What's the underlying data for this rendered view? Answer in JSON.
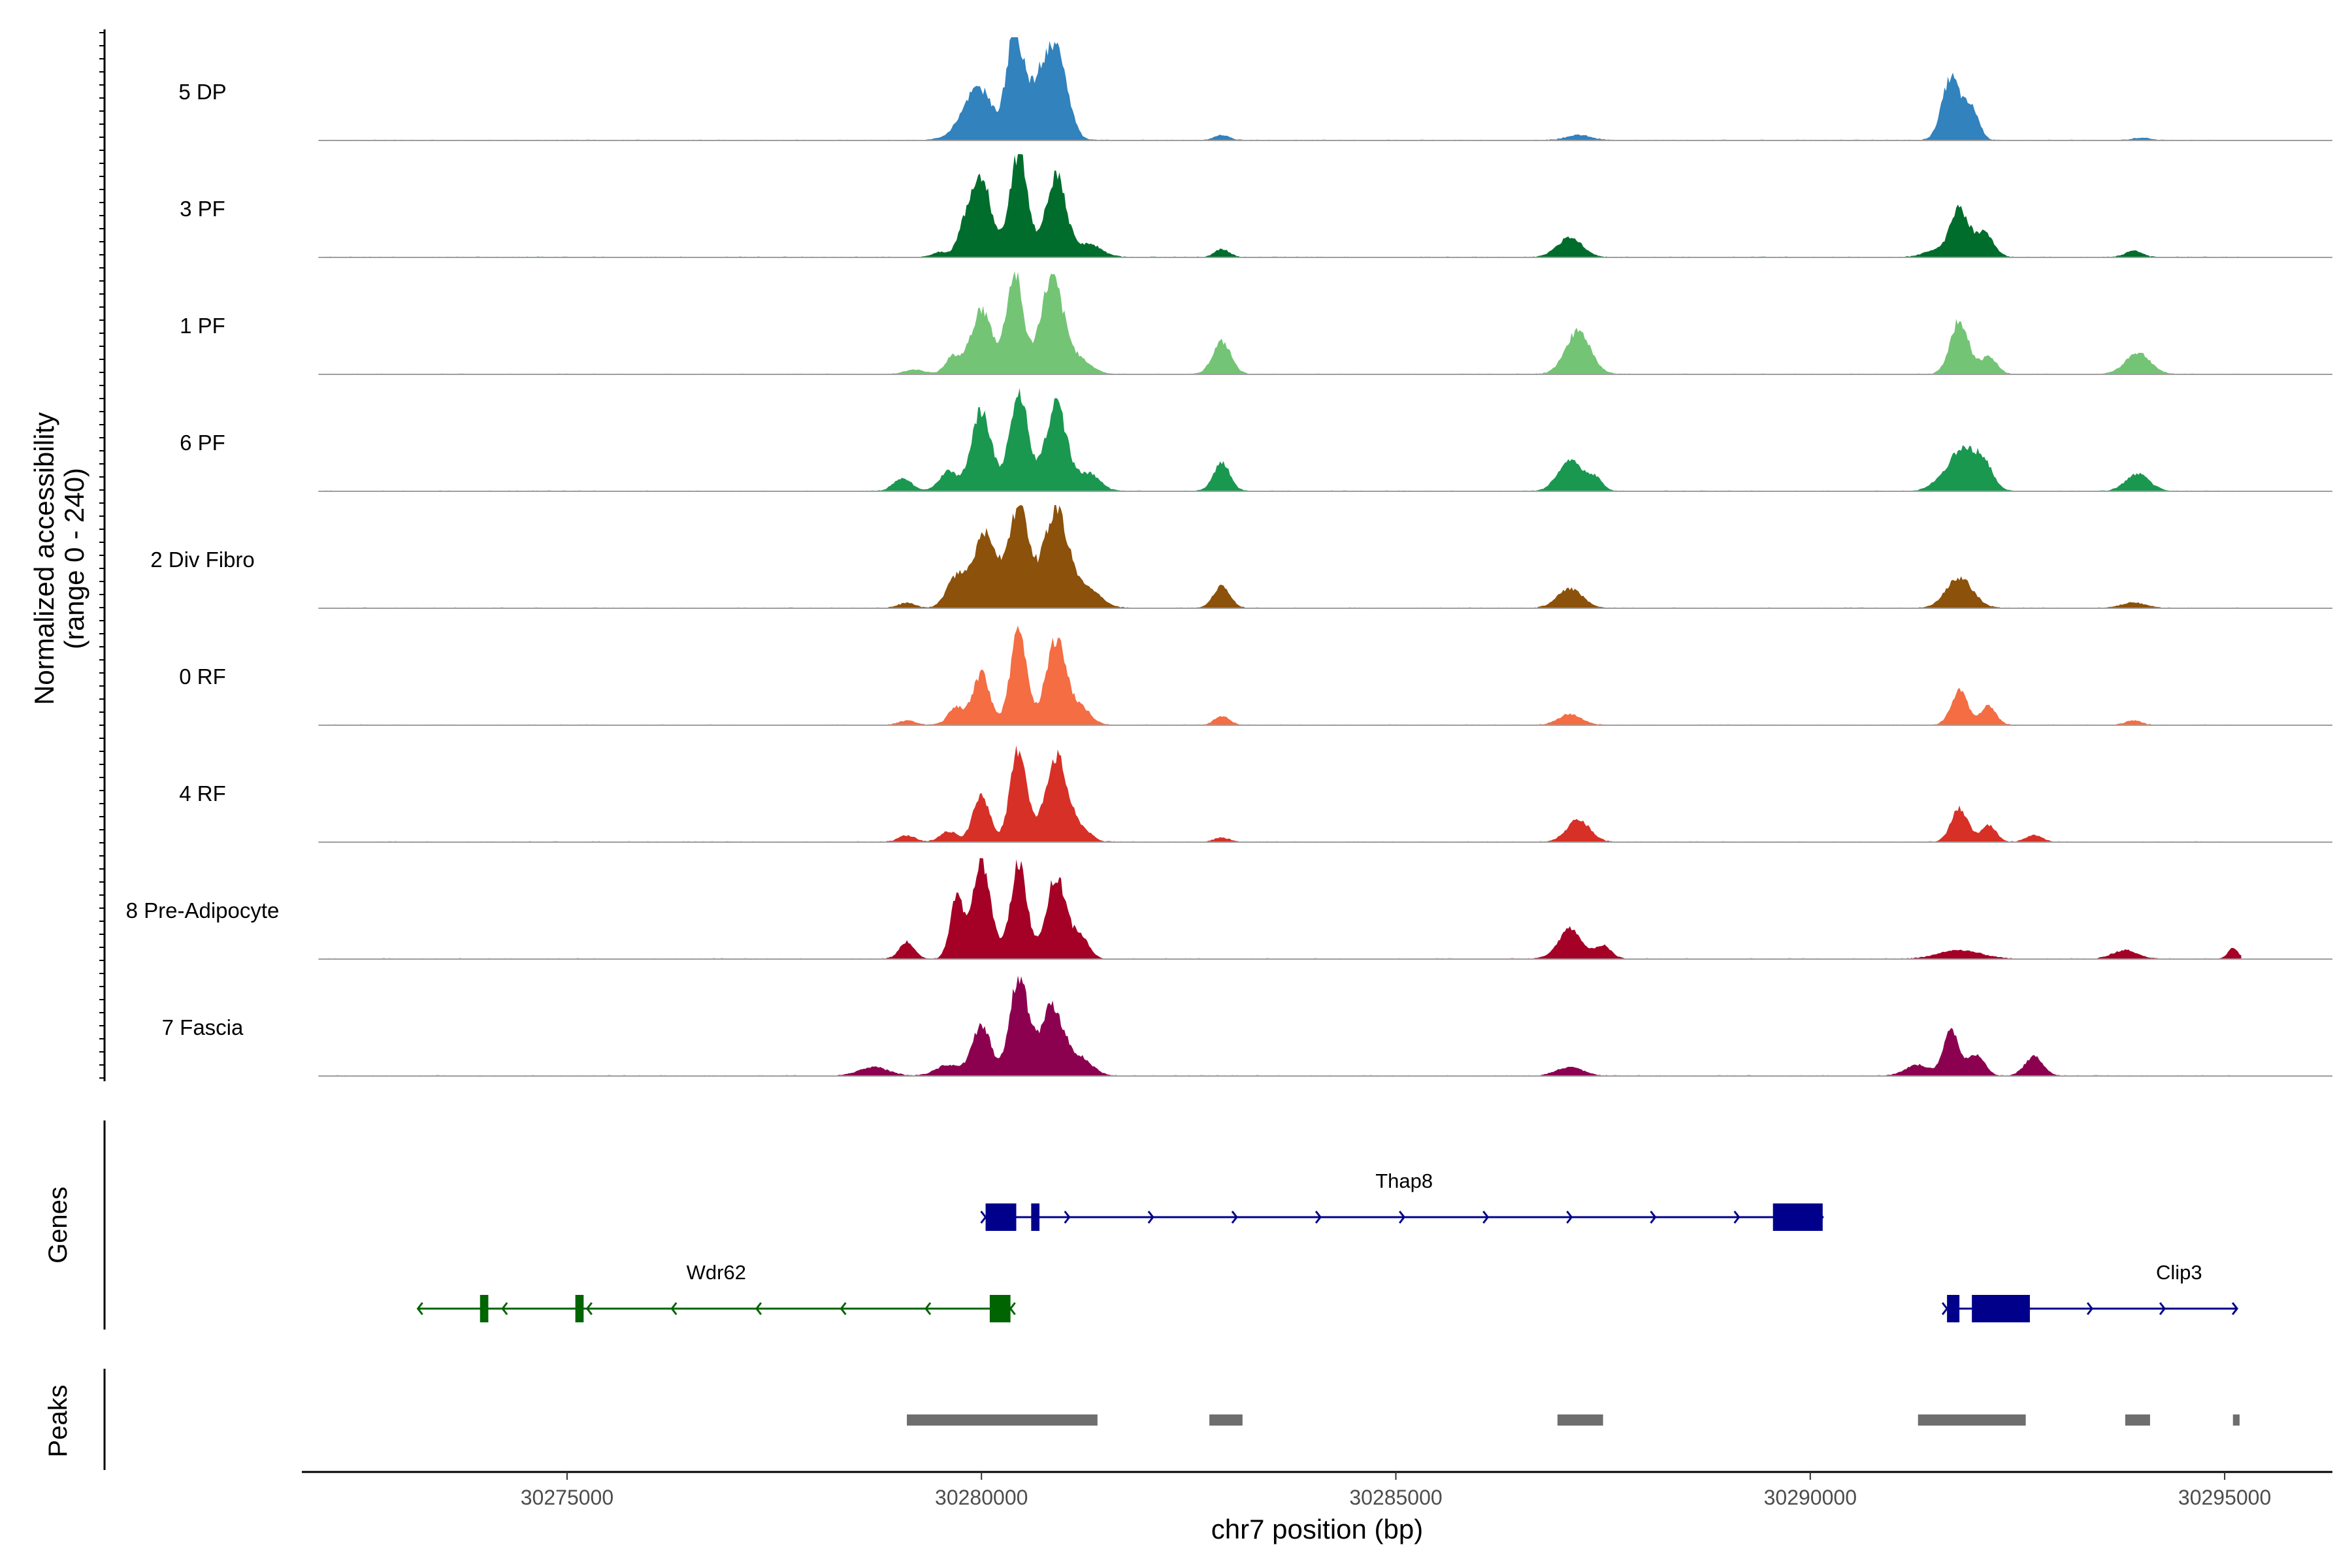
{
  "chart_data": {
    "type": "area",
    "title": "",
    "ylabel": "Normalized accessibility",
    "ylabel_range": "(range 0 - 240)",
    "ylim": [
      0,
      240
    ],
    "xlabel": "chr7 position (bp)",
    "xlim": [
      30271800,
      30296300
    ],
    "xticks": [
      30275000,
      30280000,
      30285000,
      30290000,
      30295000
    ],
    "xtick_labels": [
      "30275000",
      "30280000",
      "30285000",
      "30290000",
      "30295000"
    ],
    "tracks": [
      {
        "name": "5 DP",
        "color": "#3182bd",
        "peaks": [
          [
            30279600,
            8,
            120
          ],
          [
            30279800,
            45,
            110
          ],
          [
            30280000,
            110,
            140
          ],
          [
            30280400,
            240,
            100
          ],
          [
            30280750,
            160,
            160
          ],
          [
            30280950,
            120,
            120
          ],
          [
            30282900,
            12,
            90
          ],
          [
            30287200,
            12,
            150
          ],
          [
            30291700,
            145,
            110
          ],
          [
            30291950,
            70,
            90
          ],
          [
            30294000,
            6,
            100
          ]
        ]
      },
      {
        "name": "3 PF",
        "color": "#006d2c",
        "peaks": [
          [
            30279500,
            12,
            90
          ],
          [
            30279800,
            60,
            90
          ],
          [
            30280000,
            180,
            120
          ],
          [
            30280450,
            240,
            110
          ],
          [
            30280900,
            190,
            120
          ],
          [
            30281300,
            30,
            150
          ],
          [
            30282900,
            18,
            90
          ],
          [
            30287100,
            45,
            150
          ],
          [
            30291500,
            15,
            140
          ],
          [
            30291800,
            110,
            110
          ],
          [
            30292100,
            55,
            110
          ],
          [
            30293900,
            15,
            100
          ]
        ]
      },
      {
        "name": "1 PF",
        "color": "#74c476",
        "peaks": [
          [
            30279200,
            10,
            120
          ],
          [
            30279650,
            40,
            90
          ],
          [
            30280000,
            150,
            130
          ],
          [
            30280400,
            230,
            100
          ],
          [
            30280850,
            220,
            140
          ],
          [
            30281200,
            30,
            140
          ],
          [
            30282900,
            75,
            110
          ],
          [
            30287200,
            100,
            150
          ],
          [
            30291800,
            125,
            110
          ],
          [
            30292150,
            40,
            100
          ],
          [
            30293950,
            50,
            150
          ]
        ]
      },
      {
        "name": "6 PF",
        "color": "#1a9850",
        "peaks": [
          [
            30279050,
            30,
            110
          ],
          [
            30279600,
            45,
            110
          ],
          [
            30280000,
            190,
            120
          ],
          [
            30280450,
            230,
            110
          ],
          [
            30280900,
            200,
            130
          ],
          [
            30281300,
            40,
            130
          ],
          [
            30282900,
            65,
            100
          ],
          [
            30287100,
            75,
            140
          ],
          [
            30287400,
            30,
            90
          ],
          [
            30291600,
            25,
            140
          ],
          [
            30291850,
            95,
            140
          ],
          [
            30292100,
            60,
            110
          ],
          [
            30293950,
            40,
            140
          ]
        ]
      },
      {
        "name": "2 Div Fibro",
        "color": "#8c510a",
        "peaks": [
          [
            30279100,
            12,
            100
          ],
          [
            30279700,
            70,
            120
          ],
          [
            30280050,
            170,
            140
          ],
          [
            30280450,
            230,
            120
          ],
          [
            30280900,
            230,
            150
          ],
          [
            30281300,
            40,
            150
          ],
          [
            30282900,
            50,
            100
          ],
          [
            30287100,
            45,
            150
          ],
          [
            30291800,
            70,
            160
          ],
          [
            30293900,
            12,
            150
          ]
        ]
      },
      {
        "name": "0 RF",
        "color": "#f46d43",
        "peaks": [
          [
            30279100,
            10,
            100
          ],
          [
            30279700,
            40,
            100
          ],
          [
            30280000,
            120,
            100
          ],
          [
            30280450,
            220,
            100
          ],
          [
            30280900,
            200,
            120
          ],
          [
            30281200,
            40,
            120
          ],
          [
            30282900,
            20,
            90
          ],
          [
            30287100,
            25,
            140
          ],
          [
            30291800,
            80,
            100
          ],
          [
            30292150,
            45,
            90
          ],
          [
            30293900,
            10,
            100
          ]
        ]
      },
      {
        "name": "4 RF",
        "color": "#d73027",
        "peaks": [
          [
            30279100,
            15,
            100
          ],
          [
            30279600,
            25,
            100
          ],
          [
            30280000,
            110,
            100
          ],
          [
            30280450,
            220,
            100
          ],
          [
            30280900,
            200,
            130
          ],
          [
            30281200,
            30,
            120
          ],
          [
            30282900,
            10,
            90
          ],
          [
            30287200,
            50,
            140
          ],
          [
            30291800,
            80,
            100
          ],
          [
            30292150,
            40,
            90
          ],
          [
            30292700,
            15,
            100
          ]
        ]
      },
      {
        "name": "8 Pre-Adipocyte",
        "color": "#a50026",
        "peaks": [
          [
            30279100,
            40,
            90
          ],
          [
            30279700,
            140,
            80
          ],
          [
            30280000,
            230,
            110
          ],
          [
            30280450,
            220,
            100
          ],
          [
            30280900,
            190,
            120
          ],
          [
            30281200,
            50,
            100
          ],
          [
            30287100,
            70,
            140
          ],
          [
            30287500,
            30,
            100
          ],
          [
            30291800,
            20,
            250
          ],
          [
            30293800,
            20,
            150
          ],
          [
            30295100,
            25,
            60
          ]
        ]
      },
      {
        "name": "7 Fascia",
        "color": "#8c0050",
        "peaks": [
          [
            30278700,
            20,
            180
          ],
          [
            30279600,
            25,
            150
          ],
          [
            30280000,
            120,
            110
          ],
          [
            30280450,
            230,
            110
          ],
          [
            30280850,
            160,
            140
          ],
          [
            30281200,
            40,
            140
          ],
          [
            30287100,
            20,
            160
          ],
          [
            30291300,
            25,
            150
          ],
          [
            30291700,
            110,
            90
          ],
          [
            30292000,
            50,
            100
          ],
          [
            30292700,
            45,
            110
          ]
        ]
      }
    ],
    "genes": [
      {
        "name": "Thap8",
        "strand": "+",
        "start": 30280050,
        "end": 30290150,
        "color": "#00008b",
        "exons": [
          [
            30280050,
            30280420
          ],
          [
            30280600,
            30280700
          ],
          [
            30289550,
            30290150
          ]
        ]
      },
      {
        "name": "Wdr62",
        "strand": "-",
        "start": 30273200,
        "end": 30280350,
        "color": "#006400",
        "exons": [
          [
            30273950,
            30274050
          ],
          [
            30275100,
            30275200
          ],
          [
            30280100,
            30280350
          ]
        ]
      },
      {
        "name": "Clip3",
        "strand": "+",
        "start": 30291650,
        "end": 30295150,
        "color": "#00008b",
        "exons": [
          [
            30291650,
            30291800
          ],
          [
            30291950,
            30292650
          ]
        ]
      }
    ],
    "peaks": [
      [
        30279100,
        30281400
      ],
      [
        30282750,
        30283150
      ],
      [
        30286950,
        30287500
      ],
      [
        30291300,
        30292600
      ],
      [
        30293800,
        30294100
      ],
      [
        30295100,
        30295180
      ]
    ],
    "panel_labels": {
      "genes": "Genes",
      "peaks": "Peaks"
    }
  }
}
